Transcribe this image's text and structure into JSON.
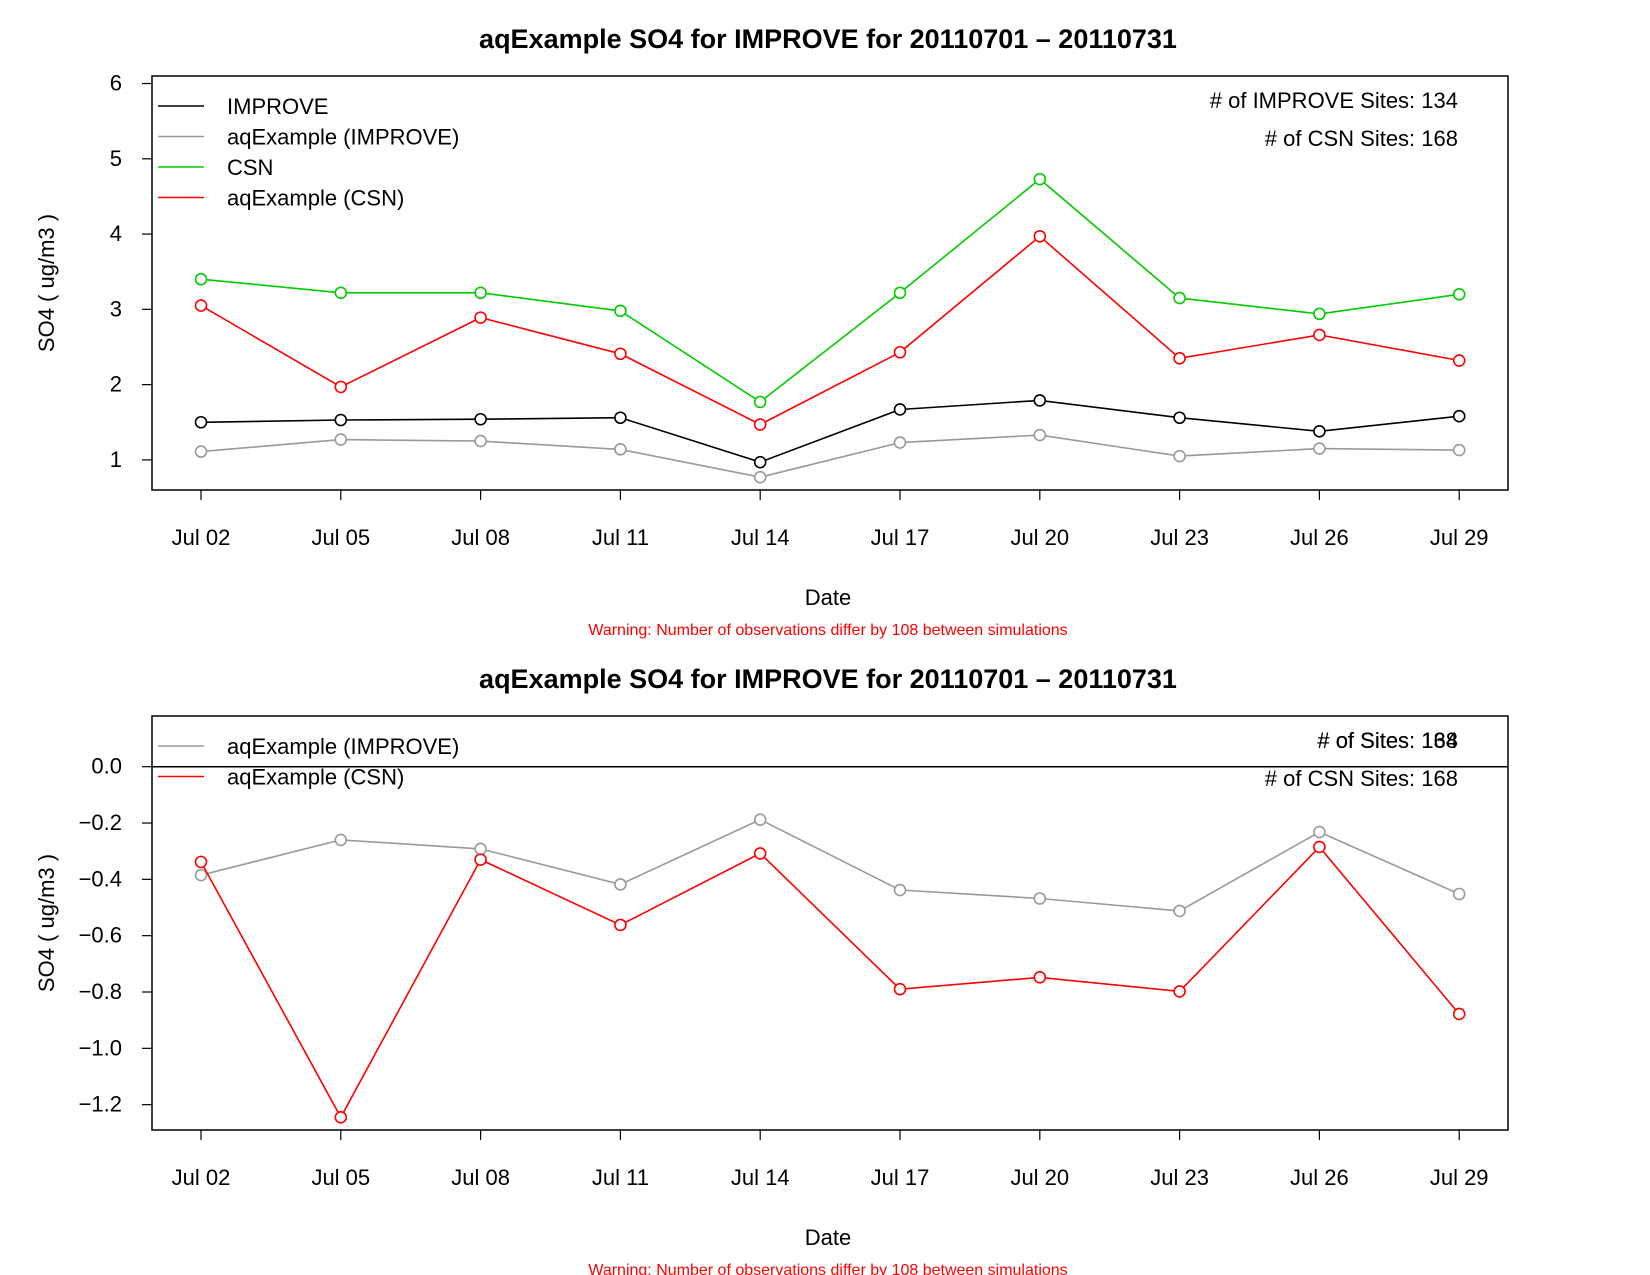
{
  "chart_data": [
    {
      "type": "line",
      "title": "aqExample SO4 for IMPROVE for 20110701 – 20110731",
      "xlabel": "Date",
      "ylabel": "SO4 ( ug/m3 )",
      "warning": "Warning: Number of observations differ by 108 between simulations",
      "x": [
        "Jul 02",
        "Jul 05",
        "Jul 08",
        "Jul 11",
        "Jul 14",
        "Jul 17",
        "Jul 20",
        "Jul 23",
        "Jul 26",
        "Jul 29"
      ],
      "x_ticks": [
        "Jul 02",
        "Jul 05",
        "Jul 08",
        "Jul 11",
        "Jul 14",
        "Jul 17",
        "Jul 20",
        "Jul 23",
        "Jul 26",
        "Jul 29"
      ],
      "ylim": [
        0.6,
        6.1
      ],
      "y_ticks": [
        1,
        2,
        3,
        4,
        5,
        6
      ],
      "y_tick_labels": [
        "1",
        "2",
        "3",
        "4",
        "5",
        "6"
      ],
      "zero_line": false,
      "grid": false,
      "legend_position": "top-left",
      "series": [
        {
          "name": "IMPROVE",
          "color": "#000000",
          "values": [
            1.5,
            1.53,
            1.54,
            1.56,
            0.97,
            1.67,
            1.79,
            1.56,
            1.38,
            1.58
          ]
        },
        {
          "name": "aqExample (IMPROVE)",
          "color": "#999999",
          "values": [
            1.11,
            1.27,
            1.25,
            1.14,
            0.77,
            1.23,
            1.33,
            1.05,
            1.15,
            1.13
          ]
        },
        {
          "name": "CSN",
          "color": "#00cc00",
          "values": [
            3.4,
            3.22,
            3.22,
            2.98,
            1.77,
            3.22,
            4.73,
            3.15,
            2.94,
            3.2
          ]
        },
        {
          "name": "aqExample (CSN)",
          "color": "#ff0000",
          "values": [
            3.05,
            1.97,
            2.89,
            2.41,
            1.47,
            2.43,
            3.97,
            2.35,
            2.66,
            2.32
          ]
        }
      ],
      "notes": [
        {
          "text": "# of IMPROVE Sites: 134"
        },
        {
          "text": "# of CSN Sites: 168"
        }
      ]
    },
    {
      "type": "line",
      "title": "aqExample SO4 for IMPROVE for 20110701 – 20110731",
      "xlabel": "Date",
      "ylabel": "SO4 ( ug/m3 )",
      "warning": "Warning: Number of observations differ by 108 between simulations",
      "x": [
        "Jul 02",
        "Jul 05",
        "Jul 08",
        "Jul 11",
        "Jul 14",
        "Jul 17",
        "Jul 20",
        "Jul 23",
        "Jul 26",
        "Jul 29"
      ],
      "x_ticks": [
        "Jul 02",
        "Jul 05",
        "Jul 08",
        "Jul 11",
        "Jul 14",
        "Jul 17",
        "Jul 20",
        "Jul 23",
        "Jul 26",
        "Jul 29"
      ],
      "ylim": [
        -1.29,
        0.18
      ],
      "y_ticks": [
        0,
        -0.2,
        -0.4,
        -0.6,
        -0.8,
        -1.0,
        -1.2
      ],
      "y_tick_labels": [
        "0.0",
        "−0.2",
        "−0.4",
        "−0.6",
        "−0.8",
        "−1.0",
        "−1.2"
      ],
      "zero_line": true,
      "grid": false,
      "legend_position": "top-left",
      "series": [
        {
          "name": "aqExample (IMPROVE)",
          "color": "#999999",
          "values": [
            -0.385,
            -0.26,
            -0.292,
            -0.418,
            -0.188,
            -0.438,
            -0.468,
            -0.512,
            -0.232,
            -0.452
          ]
        },
        {
          "name": "aqExample (CSN)",
          "color": "#ff0000",
          "values": [
            -0.338,
            -1.245,
            -0.33,
            -0.562,
            -0.308,
            -0.79,
            -0.748,
            -0.798,
            -0.285,
            -0.878
          ]
        }
      ],
      "notes": [
        {
          "text": "# of Sites: 134",
          "overlap": true
        },
        {
          "text": "# of Sites: 168",
          "overlap": true
        },
        {
          "text": "# of CSN Sites: 168"
        }
      ]
    }
  ]
}
